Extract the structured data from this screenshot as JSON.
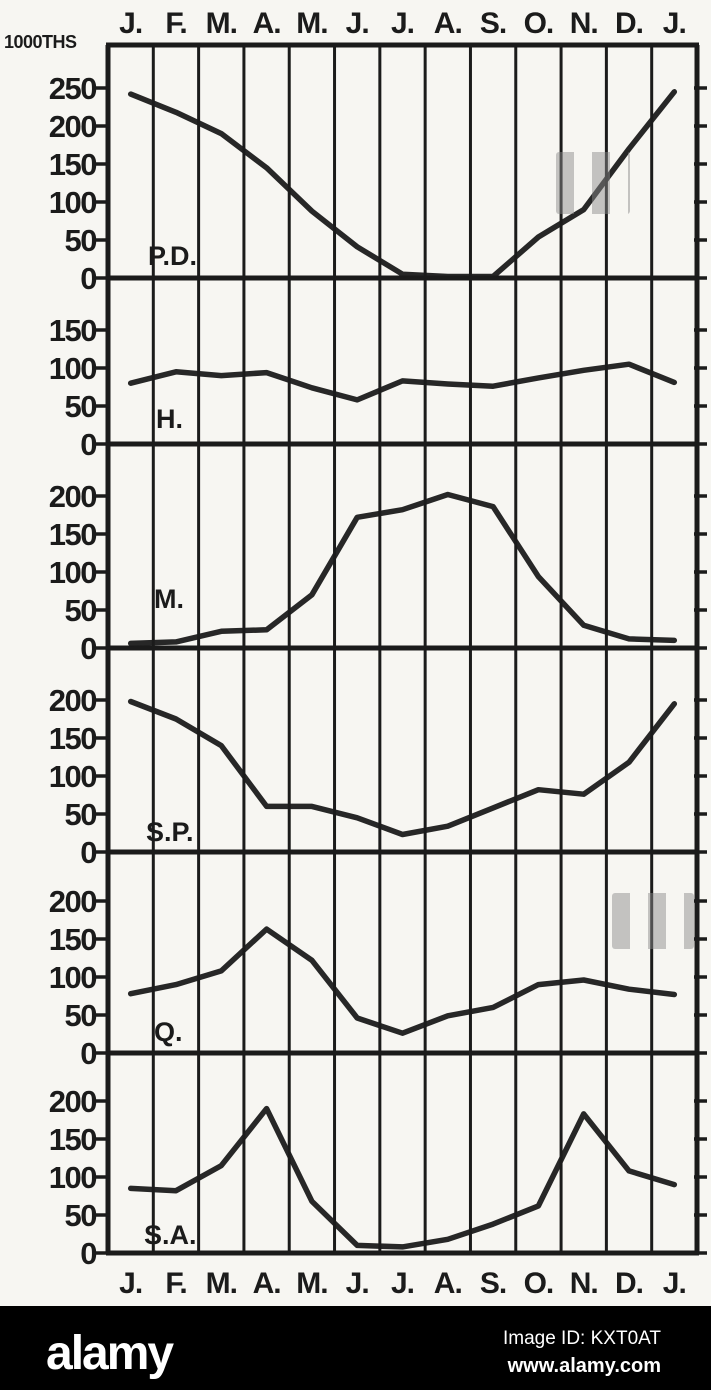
{
  "colors": {
    "ink": "#1b1b1b",
    "paper": "#f7f6f2",
    "bar_bg": "#000000",
    "bar_fg": "#ffffff"
  },
  "chart_data": {
    "type": "line",
    "x": [
      "J.",
      "F.",
      "M.",
      "A.",
      "M.",
      "J.",
      "J.",
      "A.",
      "S.",
      "O.",
      "N.",
      "D.",
      "J."
    ],
    "x_note": "months January through following January, labels repeated on top and bottom axes",
    "ylabel": "1000THS",
    "grid": "continuous vertical monthly gridlines through six stacked panels sharing the x-axis",
    "legend_position": "in-panel label at lower left of each panel",
    "panels": [
      {
        "label": "P.D.",
        "yticks": [
          250,
          200,
          150,
          100,
          50,
          0
        ],
        "ylim": [
          0,
          305
        ],
        "values": [
          242,
          218,
          190,
          145,
          88,
          41,
          5,
          2,
          2,
          54,
          90,
          170,
          245
        ]
      },
      {
        "label": "H.",
        "yticks": [
          150,
          100,
          50,
          0
        ],
        "ylim": [
          0,
          215
        ],
        "values": [
          80,
          95,
          90,
          94,
          74,
          58,
          83,
          79,
          76,
          87,
          97,
          105,
          81
        ]
      },
      {
        "label": "M.",
        "yticks": [
          200,
          150,
          100,
          50,
          0
        ],
        "ylim": [
          0,
          262
        ],
        "values": [
          6,
          8,
          22,
          24,
          70,
          172,
          182,
          202,
          186,
          94,
          30,
          12,
          10
        ]
      },
      {
        "label": "S.P.",
        "yticks": [
          200,
          150,
          100,
          50,
          0
        ],
        "ylim": [
          0,
          262
        ],
        "values": [
          198,
          175,
          140,
          60,
          60,
          45,
          23,
          34,
          58,
          82,
          76,
          118,
          195
        ]
      },
      {
        "label": "Q.",
        "yticks": [
          200,
          150,
          100,
          50,
          0
        ],
        "ylim": [
          0,
          262
        ],
        "values": [
          78,
          90,
          108,
          163,
          122,
          46,
          26,
          49,
          60,
          90,
          96,
          84,
          77
        ]
      },
      {
        "label": "S.A.",
        "yticks": [
          200,
          150,
          100,
          50,
          0
        ],
        "ylim": [
          0,
          262
        ],
        "values": [
          85,
          82,
          115,
          190,
          68,
          10,
          8,
          18,
          38,
          62,
          183,
          108,
          90
        ]
      }
    ]
  },
  "watermark_bar": {
    "logo": "alamy",
    "image_id": "Image ID: KXT0AT",
    "url": "www.alamy.com"
  }
}
